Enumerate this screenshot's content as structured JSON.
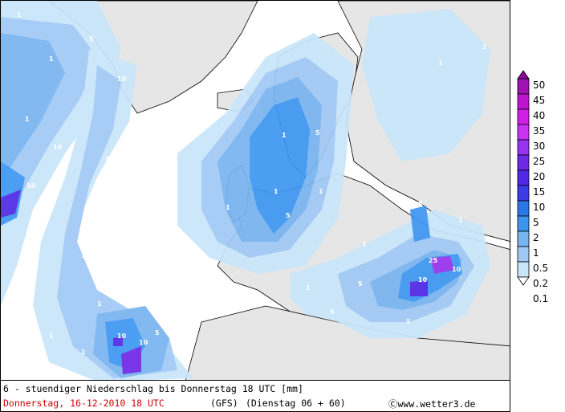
{
  "legend": {
    "labels": [
      "50",
      "45",
      "40",
      "35",
      "30",
      "25",
      "20",
      "15",
      "10",
      "5",
      "2",
      "1",
      "0.5",
      "0.2",
      "0.1"
    ],
    "colors": [
      "#8a0a96",
      "#a012b4",
      "#be14d2",
      "#d21ee6",
      "#c832f0",
      "#9632f0",
      "#6e28e6",
      "#5028e6",
      "#3c3ce6",
      "#2878e6",
      "#3c96f0",
      "#78b4f0",
      "#a0c8f5",
      "#c8e6fa",
      "#ffffff"
    ]
  },
  "caption": {
    "line1": "6 - stuendiger Niederschlag bis Donnerstag 18 UTC [mm]",
    "date": "Donnerstag, 16-12-2010  18 UTC",
    "model": "(GFS)",
    "run": "(Dienstag 06 + 60)",
    "copyright": "Ⓒwww.wetter3.de"
  },
  "map_labels": [
    "1",
    "1",
    "1",
    "1",
    "1",
    "1",
    "1",
    "1",
    "5",
    "5",
    "5",
    "10",
    "10",
    "10",
    "10",
    "10",
    "25",
    "5",
    "5",
    "5",
    "1",
    "1",
    "1",
    "1",
    "5",
    "10",
    "1",
    "1",
    "5",
    "1",
    "1",
    "1",
    "5",
    "1",
    "1",
    "10"
  ],
  "colors": {
    "land": "#e6e6e6",
    "sea": "#ffffff"
  }
}
